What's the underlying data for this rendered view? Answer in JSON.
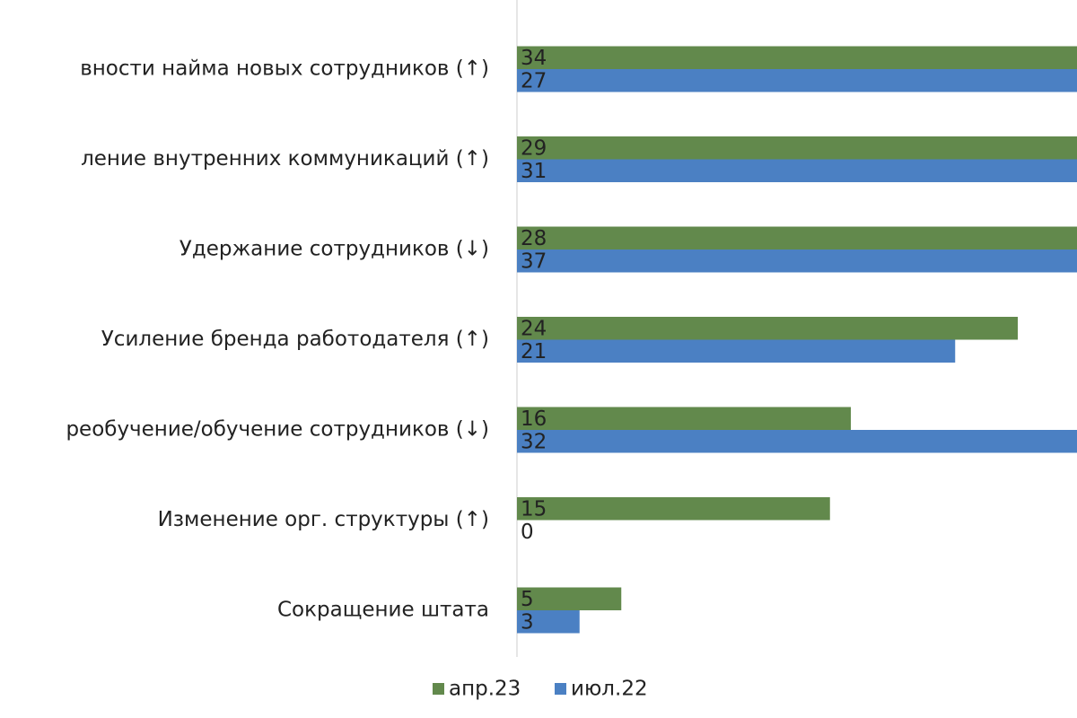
{
  "chart_data": {
    "type": "hbar",
    "categories": [
      "вности найма новых сотрудников (↑)",
      "ление внутренних коммуникаций (↑)",
      "Удержание сотрудников (↓)",
      "Усиление бренда работодателя (↑)",
      "реобучение/обучение сотрудников (↓)",
      "Изменение орг. структуры (↑)",
      "Сокращение штата"
    ],
    "series": [
      {
        "name": "апр.23",
        "color": "#62894c",
        "values": [
          34,
          29,
          28,
          24,
          16,
          15,
          5
        ]
      },
      {
        "name": "июл.22",
        "color": "#4b80c3",
        "values": [
          27,
          31,
          37,
          21,
          32,
          0,
          3
        ]
      }
    ],
    "legend": "bottom"
  }
}
